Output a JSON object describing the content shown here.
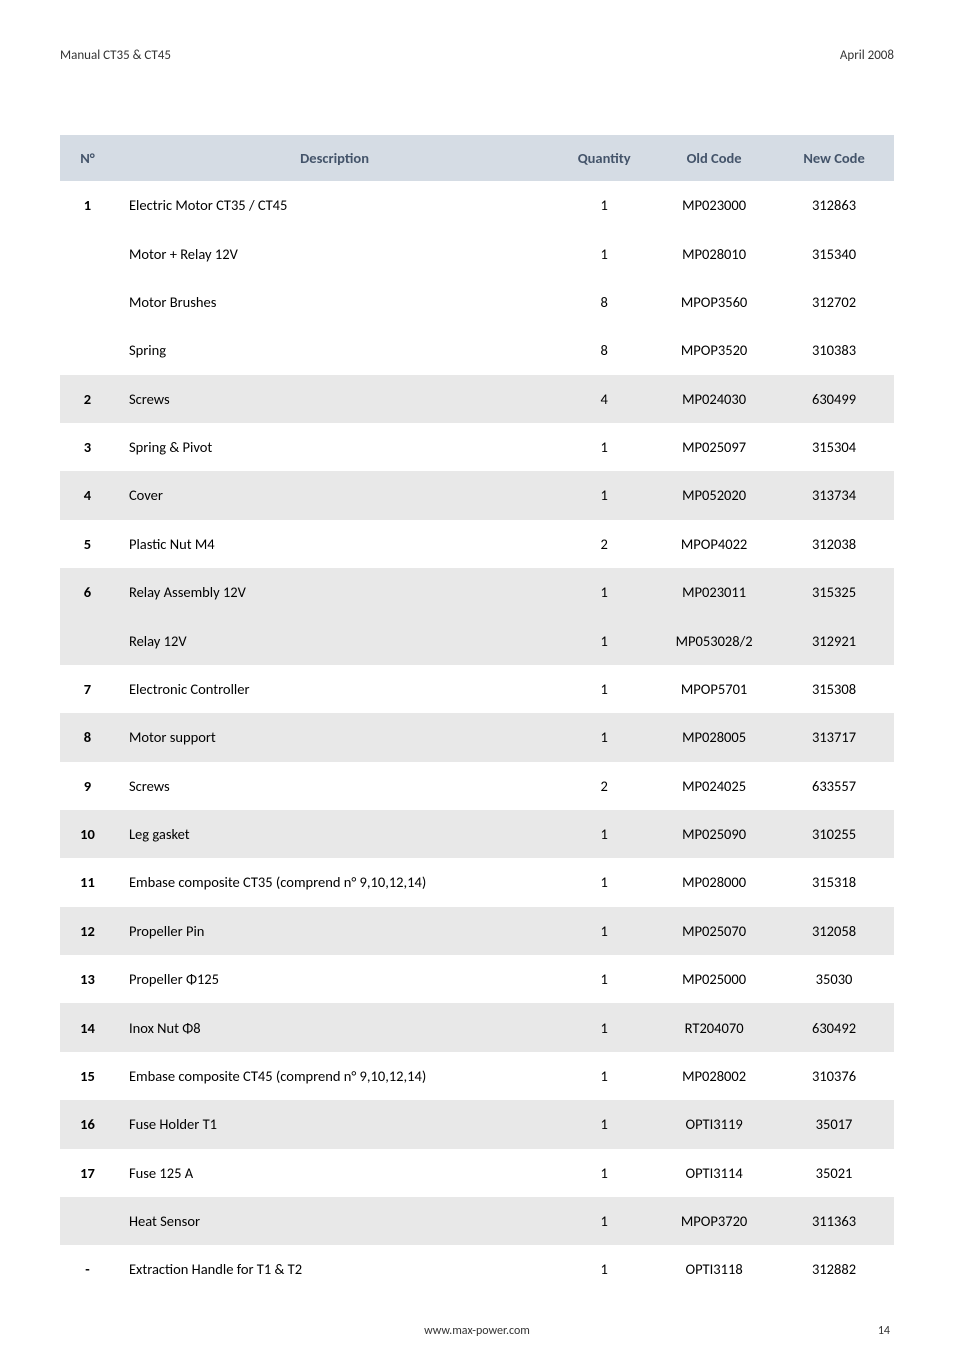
{
  "header": {
    "left": "Manual CT35 & CT45",
    "right": "April 2008"
  },
  "table": {
    "columns": [
      "N°",
      "Description",
      "Quantity",
      "Old Code",
      "New Code"
    ],
    "header_bg": "#d5dce4",
    "header_text_color": "#44546a",
    "row_alt_bg": "#e8e8e8",
    "row_bg": "#ffffff",
    "rows": [
      {
        "n": "1",
        "desc": "Electric Motor CT35 / CT45",
        "qty": "1",
        "old": "MP023000",
        "new": "312863",
        "alt": false
      },
      {
        "n": "",
        "desc": "Motor + Relay 12V",
        "qty": "1",
        "old": "MP028010",
        "new": "315340",
        "alt": false
      },
      {
        "n": "",
        "desc": "Motor Brushes",
        "qty": "8",
        "old": "MPOP3560",
        "new": "312702",
        "alt": false
      },
      {
        "n": "",
        "desc": "Spring",
        "qty": "8",
        "old": "MPOP3520",
        "new": "310383",
        "alt": false
      },
      {
        "n": "2",
        "desc": "Screws",
        "qty": "4",
        "old": "MP024030",
        "new": "630499",
        "alt": true
      },
      {
        "n": "3",
        "desc": "Spring & Pivot",
        "qty": "1",
        "old": "MP025097",
        "new": "315304",
        "alt": false
      },
      {
        "n": "4",
        "desc": "Cover",
        "qty": "1",
        "old": "MP052020",
        "new": "313734",
        "alt": true
      },
      {
        "n": "5",
        "desc": "Plastic Nut M4",
        "qty": "2",
        "old": "MPOP4022",
        "new": "312038",
        "alt": false
      },
      {
        "n": "6",
        "desc": "Relay Assembly 12V",
        "qty": "1",
        "old": "MP023011",
        "new": "315325",
        "alt": true
      },
      {
        "n": "",
        "desc": "Relay 12V",
        "qty": "1",
        "old": "MP053028/2",
        "new": "312921",
        "alt": true
      },
      {
        "n": "7",
        "desc": "Electronic Controller",
        "qty": "1",
        "old": "MPOP5701",
        "new": "315308",
        "alt": false
      },
      {
        "n": "8",
        "desc": "Motor support",
        "qty": "1",
        "old": "MP028005",
        "new": "313717",
        "alt": true
      },
      {
        "n": "9",
        "desc": "Screws",
        "qty": "2",
        "old": "MP024025",
        "new": "633557",
        "alt": false
      },
      {
        "n": "10",
        "desc": "Leg gasket",
        "qty": "1",
        "old": "MP025090",
        "new": "310255",
        "alt": true
      },
      {
        "n": "11",
        "desc": "Embase composite CT35 (comprend n° 9,10,12,14)",
        "qty": "1",
        "old": "MP028000",
        "new": "315318",
        "alt": false
      },
      {
        "n": "12",
        "desc": "Propeller Pin",
        "qty": "1",
        "old": "MP025070",
        "new": "312058",
        "alt": true
      },
      {
        "n": "13",
        "desc": "Propeller Φ125",
        "qty": "1",
        "old": "MP025000",
        "new": "35030",
        "alt": false
      },
      {
        "n": "14",
        "desc": "Inox Nut Φ8",
        "qty": "1",
        "old": "RT204070",
        "new": "630492",
        "alt": true
      },
      {
        "n": "15",
        "desc": "Embase composite CT45 (comprend n° 9,10,12,14)",
        "qty": "1",
        "old": "MP028002",
        "new": "310376",
        "alt": false
      },
      {
        "n": "16",
        "desc": "Fuse Holder T1",
        "qty": "1",
        "old": "OPTI3119",
        "new": "35017",
        "alt": true
      },
      {
        "n": "17",
        "desc": "Fuse 125 A",
        "qty": "1",
        "old": "OPTI3114",
        "new": "35021",
        "alt": false
      },
      {
        "n": "",
        "desc": "Heat Sensor",
        "qty": "1",
        "old": "MPOP3720",
        "new": "311363",
        "alt": true
      },
      {
        "n": "-",
        "desc": "Extraction Handle for T1 & T2",
        "qty": "1",
        "old": "OPTI3118",
        "new": "312882",
        "alt": false
      }
    ]
  },
  "footer": {
    "url": "www.max-power.com",
    "page": "14"
  }
}
